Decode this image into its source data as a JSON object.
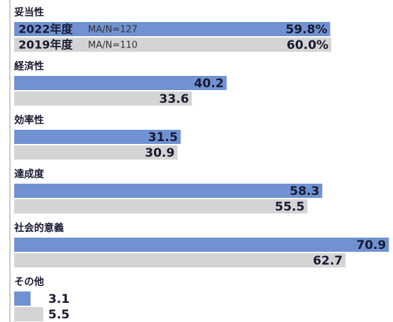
{
  "chart_data": {
    "type": "bar",
    "orientation": "horizontal",
    "categories": [
      "妥当性",
      "経済性",
      "効率性",
      "達成度",
      "社会的意義",
      "その他"
    ],
    "series": [
      {
        "name": "2022年度",
        "note": "MA/N=127",
        "color": "#7092d2",
        "values": [
          59.8,
          40.2,
          31.5,
          58.3,
          70.9,
          3.1
        ],
        "value_labels": [
          "59.8%",
          "40.2",
          "31.5",
          "58.3",
          "70.9",
          "3.1"
        ]
      },
      {
        "name": "2019年度",
        "note": "MA/N=110",
        "color": "#d4d4d4",
        "values": [
          60.0,
          33.6,
          30.9,
          55.5,
          62.7,
          5.5
        ],
        "value_labels": [
          "60.0%",
          "33.6",
          "30.9",
          "55.5",
          "62.7",
          "5.5"
        ]
      }
    ]
  }
}
